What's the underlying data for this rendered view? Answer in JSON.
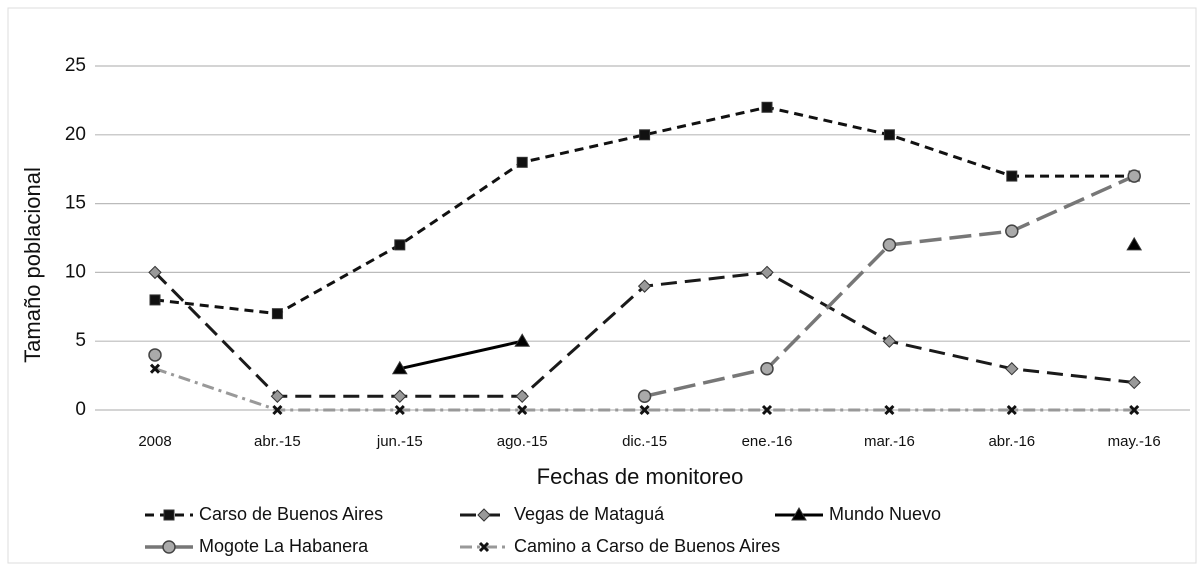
{
  "chart_data": {
    "type": "line",
    "categories": [
      "2008",
      "abr.-15",
      "jun.-15",
      "ago.-15",
      "dic.-15",
      "ene.-16",
      "mar.-16",
      "abr.-16",
      "may.-16"
    ],
    "x_label": "Fechas de monitoreo",
    "y_label": "Tamaño poblacional",
    "ylim": [
      0,
      25
    ],
    "yticks": [
      0,
      5,
      10,
      15,
      20,
      25
    ],
    "grid": true,
    "series": [
      {
        "name": "Carso de Buenos Aires",
        "color": "#111111",
        "values": [
          8,
          7,
          12,
          18,
          20,
          22,
          20,
          17,
          17
        ]
      },
      {
        "name": "Vegas de Mataguá",
        "color": "#1a1a1a",
        "values": [
          10,
          1,
          1,
          1,
          9,
          10,
          5,
          3,
          2
        ]
      },
      {
        "name": "Mundo Nuevo",
        "color": "#000000",
        "values": [
          null,
          null,
          3,
          5,
          null,
          null,
          null,
          null,
          12
        ]
      },
      {
        "name": "Mogote La Habanera",
        "color": "#777777",
        "values": [
          4,
          null,
          null,
          null,
          1,
          3,
          12,
          13,
          17
        ]
      },
      {
        "name": "Camino a Carso de Buenos Aires",
        "color": "#999999",
        "values": [
          3,
          0,
          0,
          0,
          0,
          0,
          0,
          0,
          0
        ]
      }
    ]
  }
}
